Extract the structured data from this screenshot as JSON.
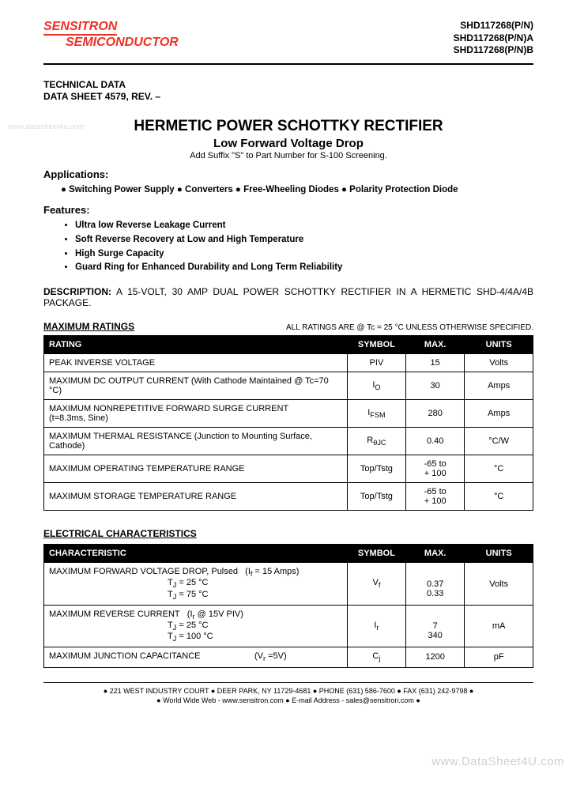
{
  "logo": {
    "line1": "SENSITRON",
    "line2": "SEMICONDUCTOR",
    "color": "#ee3124"
  },
  "part_numbers": [
    "SHD117268(P/N)",
    "SHD117268(P/N)A",
    "SHD117268(P/N)B"
  ],
  "tech_data": {
    "line1": "TECHNICAL DATA",
    "line2": "DATA SHEET 4579, REV. –"
  },
  "watermark_left": "www.datasheet4u.com",
  "title": "HERMETIC POWER SCHOTTKY RECTIFIER",
  "subtitle": "Low Forward Voltage Drop",
  "subnote": "Add Suffix \"S\" to Part Number for S-100 Screening.",
  "applications_heading": "Applications:",
  "applications_line": "●  Switching Power Supply ● Converters ● Free-Wheeling Diodes ● Polarity Protection Diode",
  "features_heading": "Features:",
  "features": [
    "Ultra low Reverse Leakage Current",
    "Soft Reverse Recovery at Low and High Temperature",
    "High Surge Capacity",
    "Guard Ring for Enhanced Durability and Long Term Reliability"
  ],
  "description_label": "DESCRIPTION:",
  "description_text": " A 15-VOLT, 30 AMP DUAL POWER SCHOTTKY RECTIFIER IN A HERMETIC SHD-4/4A/4B PACKAGE.",
  "max_ratings_heading": "MAXIMUM RATINGS",
  "max_ratings_note": "ALL RATINGS ARE @ Tc = 25 °C UNLESS OTHERWISE SPECIFIED.",
  "ratings_table": {
    "headers": [
      "RATING",
      "SYMBOL",
      "MAX.",
      "UNITS"
    ],
    "rows": [
      {
        "rating": "PEAK INVERSE VOLTAGE",
        "symbol": "PIV",
        "max": "15",
        "units": "Volts"
      },
      {
        "rating": "MAXIMUM DC OUTPUT CURRENT (With Cathode Maintained @ Tc=70 °C)",
        "symbol": "I<sub>O</sub>",
        "max": "30",
        "units": "Amps"
      },
      {
        "rating": "MAXIMUM NONREPETITIVE FORWARD SURGE CURRENT<br>(t=8.3ms, Sine)",
        "symbol": "I<sub>FSM</sub>",
        "max": "280",
        "units": "Amps"
      },
      {
        "rating": "MAXIMUM THERMAL RESISTANCE (Junction to Mounting Surface, Cathode)",
        "symbol": "R<sub>θJC</sub>",
        "max": "0.40",
        "units": "°C/W"
      },
      {
        "rating": "MAXIMUM OPERATING TEMPERATURE RANGE",
        "symbol": "Top/Tstg",
        "max": "-65 to<br>+ 100",
        "units": "°C"
      },
      {
        "rating": "MAXIMUM STORAGE TEMPERATURE RANGE",
        "symbol": "Top/Tstg",
        "max": "-65 to<br>+ 100",
        "units": "°C"
      }
    ]
  },
  "elec_heading": "ELECTRICAL CHARACTERISTICS",
  "elec_table": {
    "headers": [
      "CHARACTERISTIC",
      "SYMBOL",
      "MAX.",
      "UNITS"
    ],
    "rows": [
      {
        "char": "MAXIMUM FORWARD VOLTAGE DROP, Pulsed&nbsp;&nbsp;&nbsp;(I<sub>f</sub> = 15 Amps)<br><span class='indent'>T<sub>J</sub> = 25 °C</span><br><span class='indent'>T<sub>J</sub> = 75 °C</span>",
        "symbol": "V<sub>f</sub>",
        "max": "<br>0.37<br>0.33",
        "units": "Volts"
      },
      {
        "char": "MAXIMUM REVERSE CURRENT&nbsp;&nbsp;&nbsp;(I<sub>r</sub> @ 15V PIV)<br><span class='indent'>T<sub>J</sub> = 25 °C</span><br><span class='indent'>T<sub>J</sub> = 100 °C</span>",
        "symbol": "I<sub>r</sub>",
        "max": "<br>7<br>340",
        "units": "mA"
      },
      {
        "char": "<span class='cond'>MAXIMUM JUNCTION CAPACITANCE</span><span>(V<sub>r</sub> =5V)</span>",
        "symbol": "C<sub>j</sub>",
        "max": "1200",
        "units": "pF"
      }
    ]
  },
  "footer": {
    "line1": "● 221 WEST INDUSTRY COURT ● DEER PARK, NY 11729-4681 ● PHONE (631) 586-7600 ● FAX (631) 242-9798 ●",
    "line2": "● World Wide Web - www.sensitron.com ● E-mail Address - sales@sensitron.com ●"
  },
  "watermark_right": "www.DataSheet4U.com"
}
